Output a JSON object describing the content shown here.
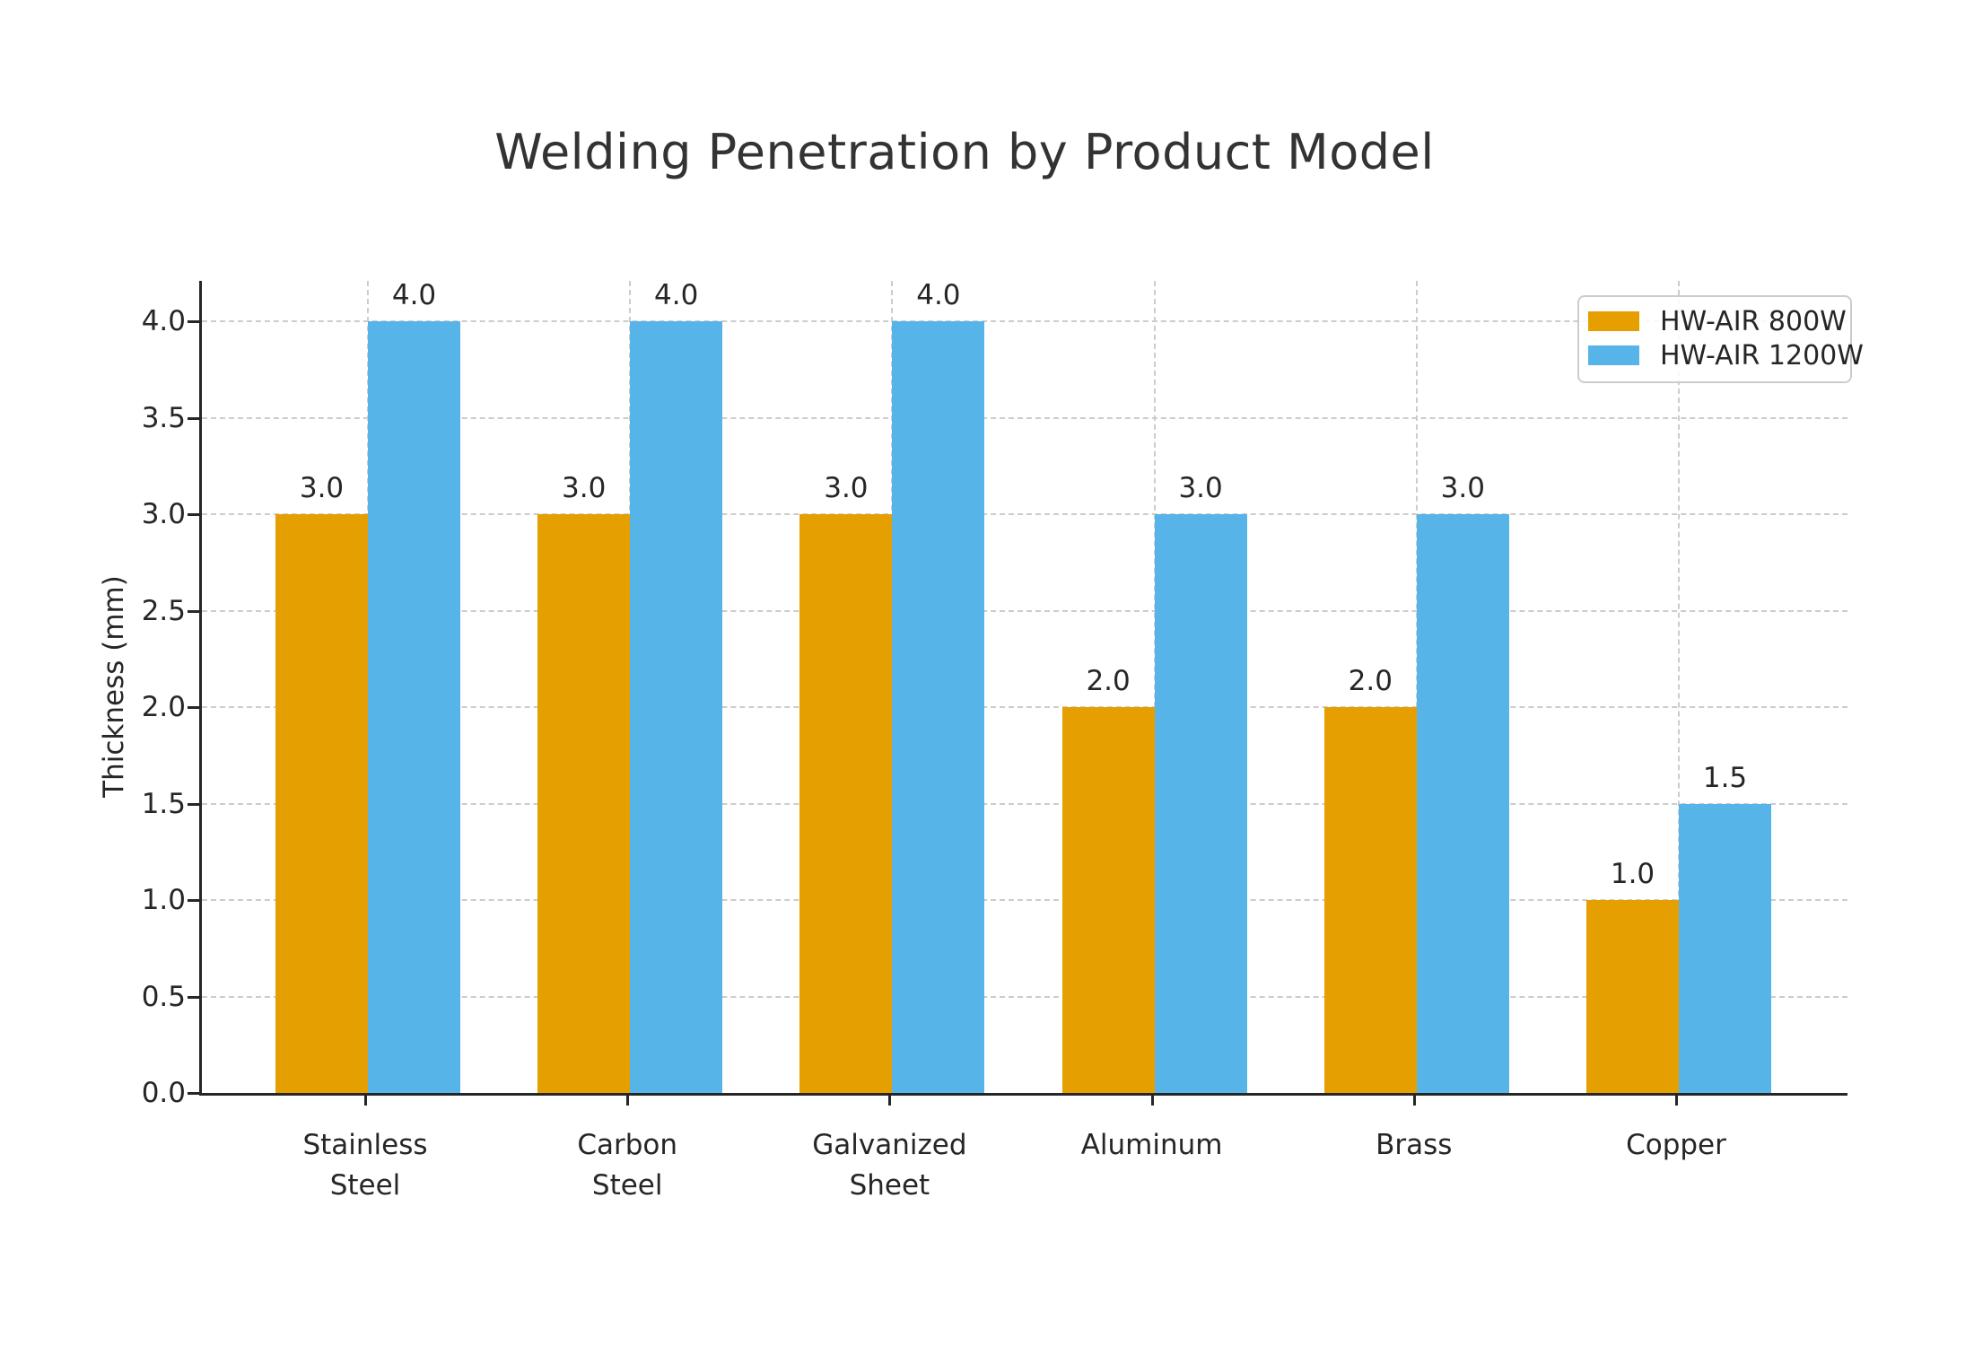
{
  "chart_data": {
    "type": "bar",
    "title": "Welding Penetration by Product Model",
    "xlabel": "",
    "ylabel": "Thickness (mm)",
    "categories": [
      "Stainless\nSteel",
      "Carbon\nSteel",
      "Galvanized\nSheet",
      "Aluminum",
      "Brass",
      "Copper"
    ],
    "series": [
      {
        "name": "HW-AIR 800W",
        "color": "#E69F00",
        "values": [
          3.0,
          3.0,
          3.0,
          2.0,
          2.0,
          1.0
        ],
        "bar_labels": [
          "3.0",
          "3.0",
          "3.0",
          "2.0",
          "2.0",
          "1.0"
        ]
      },
      {
        "name": "HW-AIR 1200W",
        "color": "#56B4E9",
        "values": [
          4.0,
          4.0,
          4.0,
          3.0,
          3.0,
          1.5
        ],
        "bar_labels": [
          "4.0",
          "4.0",
          "4.0",
          "3.0",
          "3.0",
          "1.5"
        ]
      }
    ],
    "yticks": [
      0.0,
      0.5,
      1.0,
      1.5,
      2.0,
      2.5,
      3.0,
      3.5,
      4.0
    ],
    "ytick_labels": [
      "0.0",
      "0.5",
      "1.0",
      "1.5",
      "2.0",
      "2.5",
      "3.0",
      "3.5",
      "4.0"
    ],
    "ylim": [
      0,
      4.21
    ],
    "grid": "both-dashed",
    "legend_position": "upper-right"
  },
  "colors": {
    "grid": "#cccccc",
    "axis": "#262626",
    "text": "#262626",
    "title": "#333333",
    "background": "#ffffff"
  }
}
